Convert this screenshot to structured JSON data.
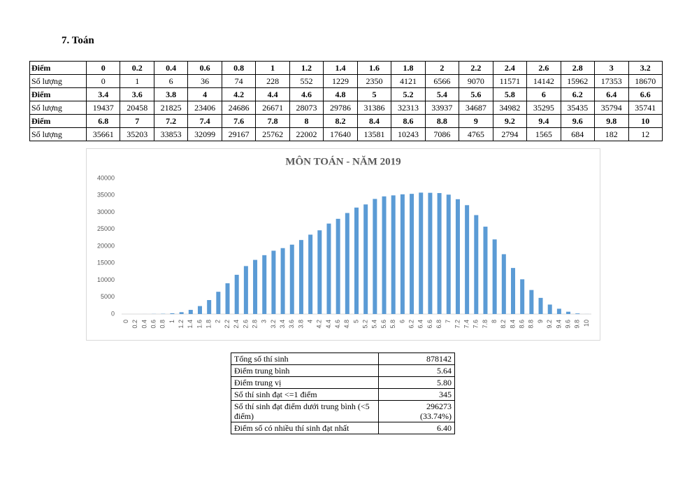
{
  "heading": "7.  Toán",
  "table": {
    "score_label": "Điểm",
    "count_label": "Số lượng",
    "row_size": 17
  },
  "chart_data": {
    "type": "bar",
    "title": "MÔN TOÁN - NĂM 2019",
    "categories": [
      "0",
      "0.2",
      "0.4",
      "0.6",
      "0.8",
      "1",
      "1.2",
      "1.4",
      "1.6",
      "1.8",
      "2",
      "2.2",
      "2.4",
      "2.6",
      "2.8",
      "3",
      "3.2",
      "3.4",
      "3.6",
      "3.8",
      "4",
      "4.2",
      "4.4",
      "4.6",
      "4.8",
      "5",
      "5.2",
      "5.4",
      "5.6",
      "5.8",
      "6",
      "6.2",
      "6.4",
      "6.6",
      "6.8",
      "7",
      "7.2",
      "7.4",
      "7.6",
      "7.8",
      "8",
      "8.2",
      "8.4",
      "8.6",
      "8.8",
      "9",
      "9.2",
      "9.4",
      "9.6",
      "9.8",
      "10"
    ],
    "values": [
      0,
      1,
      6,
      36,
      74,
      228,
      552,
      1229,
      2350,
      4121,
      6566,
      9070,
      11571,
      14142,
      15962,
      17353,
      18670,
      19437,
      20458,
      21825,
      23406,
      24686,
      26671,
      28073,
      29786,
      31386,
      32313,
      33937,
      34687,
      34982,
      35295,
      35435,
      35794,
      35741,
      35661,
      35203,
      33853,
      32099,
      29167,
      25762,
      22002,
      17640,
      13581,
      10243,
      7086,
      4765,
      2794,
      1565,
      684,
      182,
      12
    ],
    "color": "#5b9bd5",
    "ylim": [
      0,
      40000
    ],
    "yticks": [
      0,
      5000,
      10000,
      15000,
      20000,
      25000,
      30000,
      35000,
      40000
    ],
    "grid": false
  },
  "summary": {
    "rows": [
      [
        "Tổng số thí sinh",
        [
          "878142"
        ]
      ],
      [
        "Điểm trung bình",
        [
          "5.64"
        ]
      ],
      [
        "Điểm trung vị",
        [
          "5.80"
        ]
      ],
      [
        "Số thí sinh đạt <=1 điểm",
        [
          "345"
        ]
      ],
      [
        "Số thí sinh đạt điểm dưới trung bình (<5 điểm)",
        [
          "296273",
          "(33.74%)"
        ]
      ],
      [
        "Điểm số có nhiều thí sinh đạt nhất",
        [
          "6.40"
        ]
      ]
    ]
  }
}
